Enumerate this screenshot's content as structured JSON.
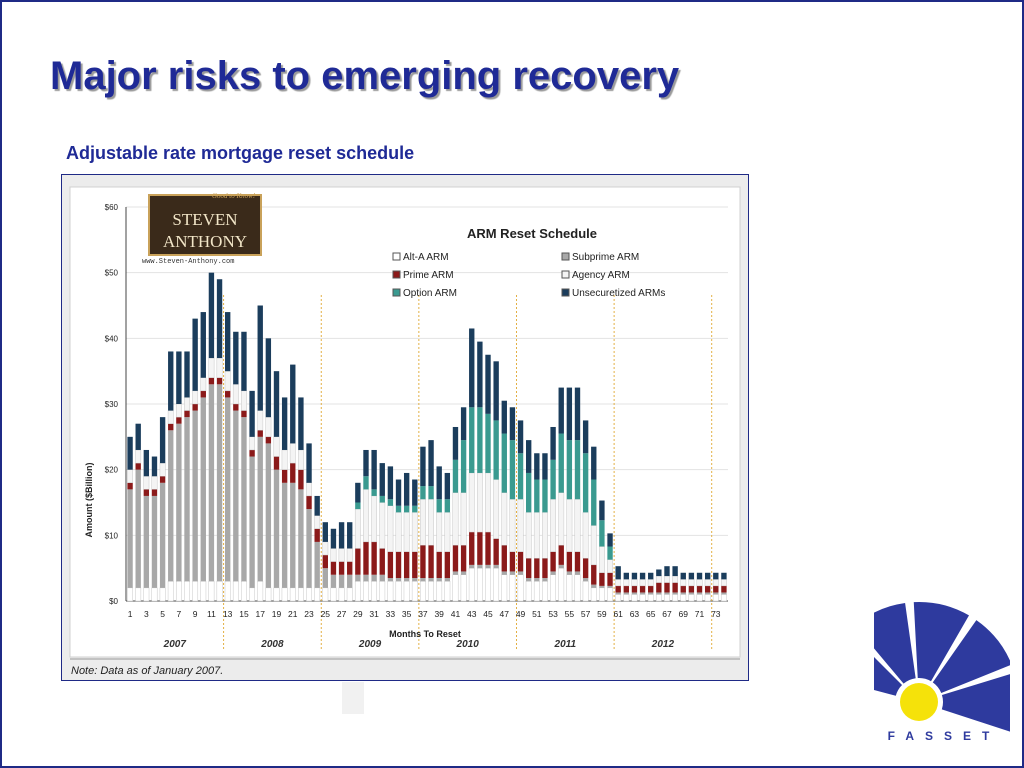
{
  "slide": {
    "title": "Major risks to emerging recovery",
    "subtitle": "Adjustable rate mortgage reset schedule",
    "logo_text": "FASSET"
  },
  "colors": {
    "title": "#1f2a96",
    "alt_a": "#ffffff",
    "subprime": "#a8a8a8",
    "prime": "#8b1a1a",
    "agency": "#f4f4f4",
    "option": "#3a9a90",
    "unsecuritized": "#1b3d5c",
    "divider": "#e0a830",
    "logo_blue": "#2e3a9e",
    "logo_yellow": "#f5e20a"
  },
  "chart_data": {
    "type": "bar",
    "stacked": true,
    "title": "ARM Reset Schedule",
    "ylabel": "Amount ($Billion)",
    "xlabel": "Months To Reset",
    "ylim": [
      0,
      60
    ],
    "yticks": [
      "$0",
      "$10",
      "$20",
      "$30",
      "$40",
      "$50",
      "$60"
    ],
    "x_tick_labels": [
      "1",
      "3",
      "5",
      "7",
      "9",
      "11",
      "13",
      "15",
      "17",
      "19",
      "21",
      "23",
      "25",
      "27",
      "29",
      "31",
      "33",
      "35",
      "37",
      "39",
      "41",
      "43",
      "45",
      "47",
      "49",
      "51",
      "53",
      "55",
      "57",
      "59",
      "61",
      "63",
      "65",
      "67",
      "69",
      "71",
      "73"
    ],
    "years": [
      "2007",
      "2008",
      "2009",
      "2010",
      "2011",
      "2012"
    ],
    "year_dividers_after_month": [
      12,
      24,
      36,
      48,
      60,
      72
    ],
    "legend_position": "top-right",
    "note": "Note: Data as of January 2007.",
    "brand_box": {
      "tagline": "Good to Know!",
      "line1": "STEVEN",
      "line2": "ANTHONY",
      "url": "www.Steven-Anthony.com"
    },
    "months": [
      1,
      2,
      3,
      4,
      5,
      6,
      7,
      8,
      9,
      10,
      11,
      12,
      13,
      14,
      15,
      16,
      17,
      18,
      19,
      20,
      21,
      22,
      23,
      24,
      25,
      26,
      27,
      28,
      29,
      30,
      31,
      32,
      33,
      34,
      35,
      36,
      37,
      38,
      39,
      40,
      41,
      42,
      43,
      44,
      45,
      46,
      47,
      48,
      49,
      50,
      51,
      52,
      53,
      54,
      55,
      56,
      57,
      58,
      59,
      60,
      61,
      62,
      63,
      64,
      65,
      66,
      67,
      68,
      69,
      70,
      71,
      72,
      73,
      74
    ],
    "series": [
      {
        "name": "Alt-A ARM",
        "values": [
          2,
          2,
          2,
          2,
          2,
          3,
          3,
          3,
          3,
          3,
          3,
          3,
          3,
          3,
          3,
          2,
          3,
          2,
          2,
          2,
          2,
          2,
          2,
          2,
          2,
          2,
          2,
          2,
          3,
          3,
          3,
          3,
          3,
          3,
          3,
          3,
          3,
          3,
          3,
          3,
          4,
          4,
          5,
          5,
          5,
          5,
          4,
          4,
          4,
          3,
          3,
          3,
          4,
          5,
          4,
          4,
          3,
          2,
          2,
          2,
          1,
          1,
          1,
          1,
          1,
          1,
          1,
          1,
          1,
          1,
          1,
          1,
          1,
          1
        ]
      },
      {
        "name": "Subprime ARM",
        "values": [
          15,
          18,
          14,
          14,
          16,
          23,
          24,
          25,
          26,
          28,
          30,
          30,
          28,
          26,
          25,
          20,
          22,
          22,
          18,
          16,
          16,
          15,
          12,
          7,
          3,
          2,
          2,
          2,
          1,
          1,
          1,
          1,
          0.5,
          0.5,
          0.5,
          0.5,
          0.5,
          0.5,
          0.5,
          0.5,
          0.5,
          0.5,
          0.5,
          0.5,
          0.5,
          0.5,
          0.5,
          0.5,
          0.5,
          0.5,
          0.5,
          0.5,
          0.5,
          0.5,
          0.5,
          0.5,
          0.5,
          0.5,
          0.3,
          0.3,
          0.3,
          0.3,
          0.3,
          0.3,
          0.3,
          0.3,
          0.3,
          0.3,
          0.3,
          0.3,
          0.3,
          0.3,
          0.3,
          0.3
        ]
      },
      {
        "name": "Prime ARM",
        "values": [
          1,
          1,
          1,
          1,
          1,
          1,
          1,
          1,
          1,
          1,
          1,
          1,
          1,
          1,
          1,
          1,
          1,
          1,
          2,
          2,
          3,
          3,
          2,
          2,
          2,
          2,
          2,
          2,
          4,
          5,
          5,
          4,
          4,
          4,
          4,
          4,
          5,
          5,
          4,
          4,
          4,
          4,
          5,
          5,
          5,
          4,
          4,
          3,
          3,
          3,
          3,
          3,
          3,
          3,
          3,
          3,
          3,
          3,
          2,
          2,
          1,
          1,
          1,
          1,
          1,
          1.5,
          1.5,
          1.5,
          1,
          1,
          1,
          1,
          1,
          1
        ]
      },
      {
        "name": "Agency ARM",
        "values": [
          2,
          2,
          2,
          2,
          2,
          2,
          2,
          2,
          2,
          2,
          3,
          3,
          3,
          3,
          3,
          2,
          3,
          3,
          3,
          3,
          3,
          3,
          2,
          2,
          2,
          2,
          2,
          2,
          6,
          8,
          7,
          7,
          7,
          6,
          6,
          6,
          7,
          7,
          6,
          6,
          8,
          8,
          9,
          9,
          9,
          9,
          8,
          8,
          8,
          7,
          7,
          7,
          8,
          8,
          8,
          8,
          7,
          6,
          4,
          2,
          1,
          1,
          1,
          1,
          1,
          1,
          1,
          1,
          1,
          1,
          1,
          1,
          1,
          1
        ]
      },
      {
        "name": "Option ARM",
        "values": [
          0,
          0,
          0,
          0,
          0,
          0,
          0,
          0,
          0,
          0,
          0,
          0,
          0,
          0,
          0,
          0,
          0,
          0,
          0,
          0,
          0,
          0,
          0,
          0,
          0,
          0,
          0,
          0,
          1,
          2,
          1,
          1,
          1,
          1,
          1,
          1,
          2,
          2,
          2,
          2,
          5,
          8,
          10,
          10,
          9,
          9,
          9,
          9,
          7,
          6,
          5,
          5,
          6,
          9,
          9,
          9,
          9,
          7,
          4,
          2,
          0,
          0,
          0,
          0,
          0,
          0,
          0,
          0,
          0,
          0,
          0,
          0,
          0,
          0
        ]
      },
      {
        "name": "Unsecuretized ARMs",
        "values": [
          5,
          4,
          4,
          3,
          7,
          9,
          8,
          7,
          11,
          10,
          13,
          12,
          9,
          8,
          9,
          7,
          16,
          12,
          10,
          8,
          12,
          8,
          6,
          3,
          3,
          3,
          4,
          4,
          3,
          4,
          6,
          5,
          5,
          4,
          5,
          4,
          6,
          7,
          5,
          4,
          5,
          5,
          12,
          10,
          9,
          9,
          5,
          5,
          5,
          5,
          4,
          4,
          5,
          7,
          8,
          8,
          5,
          5,
          3,
          2,
          2,
          1,
          1,
          1,
          1,
          1,
          1.5,
          1.5,
          1,
          1,
          1,
          1,
          1,
          1
        ]
      }
    ]
  }
}
